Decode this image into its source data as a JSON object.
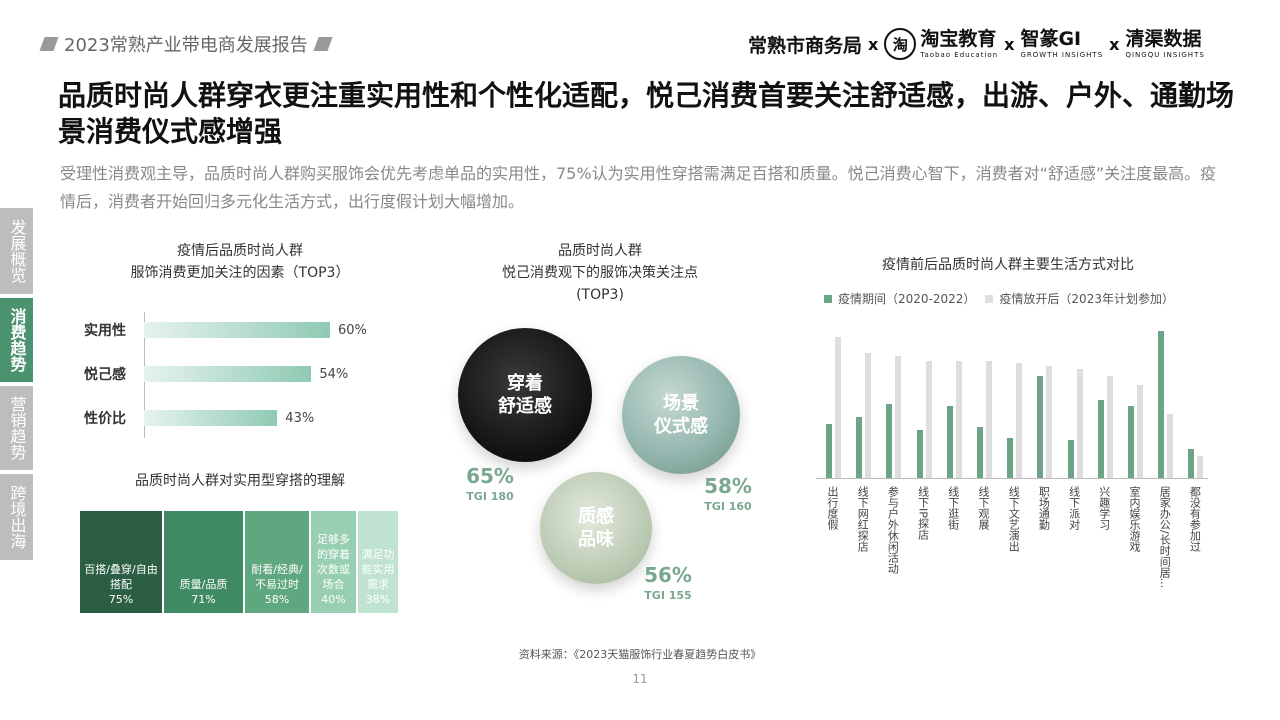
{
  "header": {
    "report_tag": "2023常熟产业带电商发展报告",
    "partners": [
      "常熟市商务局",
      "淘宝教育",
      "智篆GI",
      "清渠数据"
    ],
    "partner_subs": [
      "Taobao Education",
      "GROWTH INSIGHTS",
      "QINGQU INSIGHTS"
    ],
    "taobao_mark": "淘",
    "sep": "x"
  },
  "headline": "品质时尚人群穿衣更注重实用性和个性化适配，悦己消费首要关注舒适感，出游、户外、通勤场景消费仪式感增强",
  "summary": "受理性消费观主导，品质时尚人群购买服饰会优先考虑单品的实用性，75%认为实用性穿搭需满足百搭和质量。悦己消费心智下，消费者对“舒适感”关注度最高。疫情后，消费者开始回归多元化生活方式，出行度假计划大幅增加。",
  "sidenav": [
    {
      "label": "发展概览",
      "active": false
    },
    {
      "label": "消费趋势",
      "active": true
    },
    {
      "label": "营销趋势",
      "active": false
    },
    {
      "label": "跨境出海",
      "active": false
    }
  ],
  "chart_data": [
    {
      "type": "bar",
      "title": "疫情后品质时尚人群\n服饰消费更加关注的因素（TOP3）",
      "categories": [
        "实用性",
        "悦己感",
        "性价比"
      ],
      "values": [
        60,
        54,
        43
      ],
      "labels": [
        "60%",
        "54%",
        "43%"
      ]
    },
    {
      "type": "table",
      "title": "品质时尚人群对实用型穿搭的理解",
      "categories": [
        "百搭/叠穿/自由搭配",
        "质量/品质",
        "耐看/经典/不易过时",
        "足够多的穿着次数或场合",
        "满足功能实用需求"
      ],
      "values": [
        75,
        71,
        58,
        40,
        38
      ],
      "labels": [
        "75%",
        "71%",
        "58%",
        "40%",
        "38%"
      ],
      "colors": [
        "#2b5e43",
        "#3f8a63",
        "#5fa87f",
        "#98cfb2",
        "#c0e3d1"
      ]
    },
    {
      "type": "bubble",
      "title": "品质时尚人群\n悦己消费观下的服饰决策关注点\n(TOP3)",
      "categories": [
        "穿着舒适感",
        "场景仪式感",
        "质感品味"
      ],
      "values": [
        65,
        58,
        56
      ],
      "labels": [
        "65%",
        "58%",
        "56%"
      ],
      "tgi": [
        "TGI 180",
        "TGI 160",
        "TGI 155"
      ],
      "bubble_text": [
        "穿着\n舒适感",
        "场景\n仪式感",
        "质感\n品味"
      ]
    },
    {
      "type": "bar",
      "title": "疫情前后品质时尚人群主要生活方式对比",
      "categories": [
        "出行度假",
        "线下网红探店",
        "参与户外休闲活动",
        "线下IP探店",
        "线下逛街",
        "线下观展",
        "线下文艺演出",
        "职场通勤",
        "线下派对",
        "兴趣学习",
        "室内娱乐游戏",
        "居家办公/长时间居...",
        "都没有参加过"
      ],
      "series": [
        {
          "name": "疫情期间（2020-2022）",
          "values": [
            34,
            38,
            46,
            30,
            45,
            32,
            25,
            64,
            24,
            49,
            45,
            92,
            18
          ]
        },
        {
          "name": "疫情放开后（2023年计划参加）",
          "values": [
            88,
            78,
            76,
            73,
            73,
            73,
            72,
            70,
            68,
            64,
            58,
            40,
            14
          ]
        }
      ],
      "ylim": [
        0,
        100
      ],
      "grid": false,
      "legend": "top",
      "colors": [
        "#6ba486",
        "#dedede"
      ]
    }
  ],
  "source": "资料来源：《2023天猫服饰行业春夏趋势白皮书》",
  "page_number": "11"
}
